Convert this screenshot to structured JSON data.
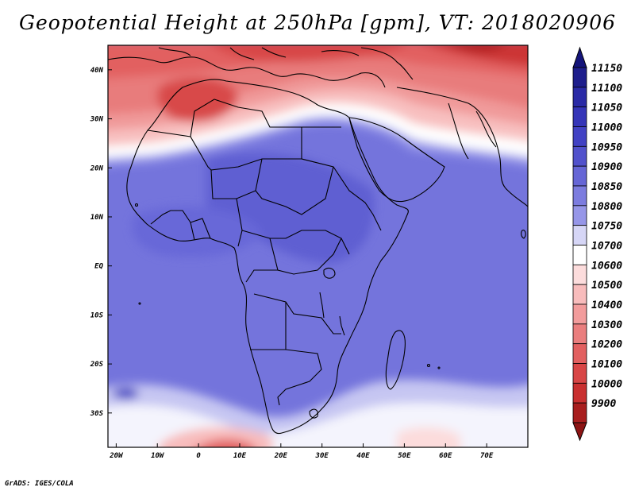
{
  "title": "Geopotential Height at 250hPa [gpm], VT: 2018020906",
  "credit": "GrADS: IGES/COLA",
  "map": {
    "projection": "latlon",
    "lon_range": [
      -22,
      80
    ],
    "lat_range": [
      -37,
      45
    ],
    "lon_ticks": [
      {
        "value": -20,
        "label": "20W"
      },
      {
        "value": -10,
        "label": "10W"
      },
      {
        "value": 0,
        "label": "0"
      },
      {
        "value": 10,
        "label": "10E"
      },
      {
        "value": 20,
        "label": "20E"
      },
      {
        "value": 30,
        "label": "30E"
      },
      {
        "value": 40,
        "label": "40E"
      },
      {
        "value": 50,
        "label": "50E"
      },
      {
        "value": 60,
        "label": "60E"
      },
      {
        "value": 70,
        "label": "70E"
      }
    ],
    "lat_ticks": [
      {
        "value": 40,
        "label": "40N"
      },
      {
        "value": 30,
        "label": "30N"
      },
      {
        "value": 20,
        "label": "20N"
      },
      {
        "value": 10,
        "label": "10N"
      },
      {
        "value": 0,
        "label": "EQ"
      },
      {
        "value": -10,
        "label": "10S"
      },
      {
        "value": -20,
        "label": "20S"
      },
      {
        "value": -30,
        "label": "30S"
      }
    ]
  },
  "colorbar": {
    "levels": [
      {
        "label": "11150",
        "color": "#1e1e8c"
      },
      {
        "label": "11100",
        "color": "#2a2aa6"
      },
      {
        "label": "11050",
        "color": "#3535b8"
      },
      {
        "label": "11000",
        "color": "#4242c4"
      },
      {
        "label": "10950",
        "color": "#5252cc"
      },
      {
        "label": "10900",
        "color": "#6666d6"
      },
      {
        "label": "10850",
        "color": "#7c7cdf"
      },
      {
        "label": "10800",
        "color": "#9696e8"
      },
      {
        "label": "10750",
        "color": "#d6d6f6"
      },
      {
        "label": "10700",
        "color": "#ffffff"
      },
      {
        "label": "10600",
        "color": "#fcdcdc"
      },
      {
        "label": "10500",
        "color": "#f8bcbc"
      },
      {
        "label": "10400",
        "color": "#f29c9c"
      },
      {
        "label": "10300",
        "color": "#ea7e7e"
      },
      {
        "label": "10200",
        "color": "#e26060"
      },
      {
        "label": "10100",
        "color": "#d84646"
      },
      {
        "label": "10000",
        "color": "#c93030"
      },
      {
        "label": "9900",
        "color": "#a81e1e"
      }
    ],
    "top_arrow_color": "#14147a",
    "bottom_arrow_color": "#8c1414"
  }
}
